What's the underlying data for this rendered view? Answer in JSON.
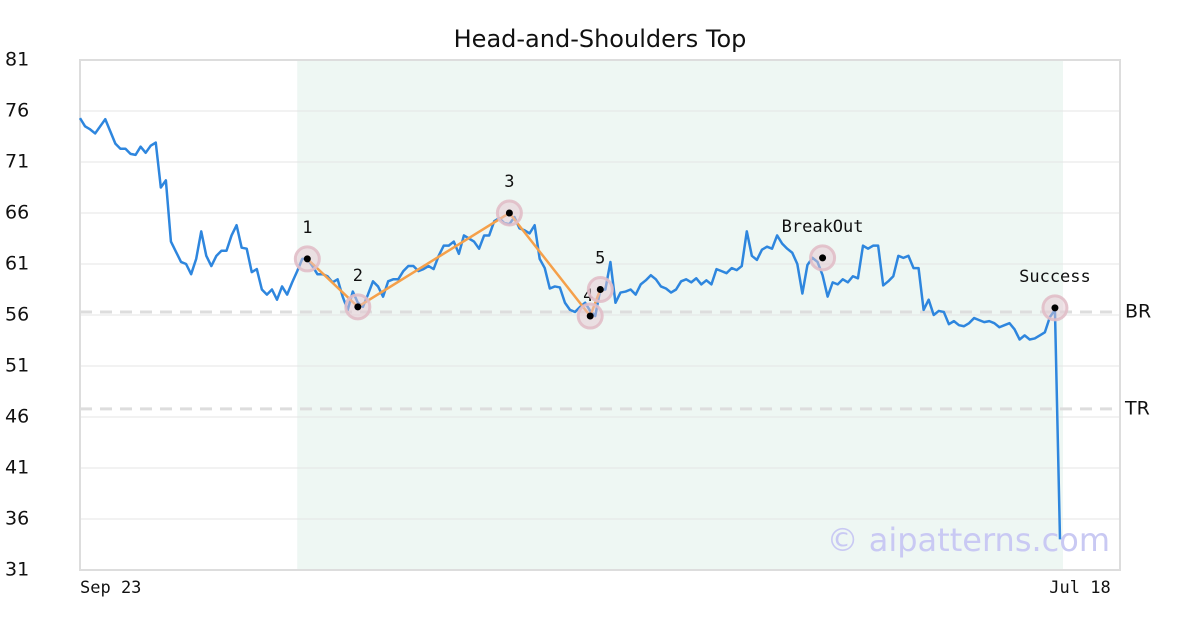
{
  "chart_data": {
    "type": "line",
    "title": "Head-and-Shoulders Top",
    "categories": [
      "Sep 23",
      null,
      null,
      null,
      null,
      null,
      null,
      null,
      null,
      null,
      null,
      null,
      null,
      null,
      null,
      null,
      null,
      null,
      null,
      null,
      null,
      null,
      null,
      null,
      null,
      null,
      null,
      null,
      null,
      null,
      null,
      null,
      null,
      null,
      null,
      null,
      null,
      null,
      null,
      null,
      null,
      null,
      null,
      null,
      null,
      null,
      null,
      null,
      null,
      null,
      null,
      null,
      null,
      null,
      null,
      null,
      null,
      null,
      null,
      null,
      null,
      null,
      null,
      null,
      null,
      null,
      null,
      null,
      null,
      null,
      null,
      null,
      null,
      null,
      null,
      null,
      null,
      null,
      null,
      null,
      null,
      null,
      null,
      null,
      null,
      null,
      null,
      null,
      null,
      null,
      null,
      null,
      null,
      null,
      null,
      null,
      null,
      null,
      null,
      null,
      null,
      null,
      null,
      null,
      null,
      null,
      null,
      null,
      null,
      null,
      null,
      null,
      null,
      null,
      null,
      null,
      null,
      null,
      null,
      null,
      null,
      null,
      null,
      null,
      null,
      null,
      null,
      null,
      null,
      null,
      null,
      null,
      null,
      null,
      null,
      null,
      null,
      null,
      null,
      null,
      null,
      null,
      null,
      null,
      null,
      null,
      null,
      null,
      null,
      null,
      null,
      null,
      null,
      null,
      null,
      null,
      null,
      null,
      null,
      null,
      null,
      null,
      null,
      null,
      null,
      null,
      null,
      null,
      null,
      null,
      null,
      null,
      null,
      null,
      null,
      null,
      null,
      null,
      null,
      null,
      null,
      null,
      null,
      null,
      null,
      null,
      null,
      null,
      null,
      null,
      null,
      null,
      null,
      null,
      "Jul 18"
    ],
    "series": [
      {
        "color": "#2e86de",
        "values": [
          75.3,
          74.5,
          74.2,
          73.8,
          74.5,
          75.2,
          74,
          72.8,
          72.3,
          72.3,
          71.8,
          71.7,
          72.5,
          71.9,
          72.6,
          72.9,
          68.5,
          69.2,
          63.2,
          62.2,
          61.2,
          61,
          60,
          61.5,
          64.2,
          61.8,
          60.8,
          61.8,
          62.3,
          62.3,
          63.8,
          64.8,
          62.6,
          62.5,
          60.2,
          60.5,
          58.5,
          58,
          58.5,
          57.5,
          58.8,
          58,
          59.2,
          60.3,
          61.5,
          61.5,
          60.8,
          60,
          60,
          59.8,
          59.2,
          59.5,
          57.8,
          56.5,
          58.3,
          57.2,
          56.8,
          58,
          59.3,
          58.8,
          57.8,
          59.3,
          59.5,
          59.5,
          60.3,
          60.8,
          60.8,
          60.3,
          60.5,
          60.8,
          60.5,
          61.8,
          62.8,
          62.8,
          63.2,
          62,
          63.8,
          63.5,
          63.2,
          62.5,
          63.8,
          63.8,
          65.2,
          65.5,
          65,
          64.9,
          65.6,
          64.5,
          64.3,
          64,
          64.8,
          61.5,
          60.6,
          58.6,
          58.8,
          58.7,
          57.2,
          56.5,
          56.3,
          56.8,
          57.2,
          56.4,
          55.9,
          58.5,
          58.5,
          61.2,
          57.2,
          58.2,
          58.3,
          58.5,
          58,
          59,
          59.4,
          59.9,
          59.5,
          58.8,
          58.6,
          58.2,
          58.5,
          59.3,
          59.5,
          59.2,
          59.6,
          59,
          59.4,
          59,
          60.5,
          60.3,
          60.1,
          60.6,
          60.4,
          60.8,
          64.2,
          61.8,
          61.4,
          62.4,
          62.7,
          62.5,
          63.8,
          63,
          62.5,
          62.1,
          61,
          58.1,
          60.9,
          61.6,
          61.2,
          59.9,
          57.8,
          59.2,
          59,
          59.5,
          59.2,
          59.8,
          59.6,
          62.8,
          62.5,
          62.8,
          62.8,
          58.9,
          59.3,
          59.8,
          61.8,
          61.6,
          61.8,
          60.6,
          60.6,
          56.5,
          57.5,
          56,
          56.4,
          56.3,
          55.1,
          55.4,
          55,
          54.9,
          55.2,
          55.7,
          55.5,
          55.3,
          55.4,
          55.2,
          54.8,
          55,
          55.2,
          54.6,
          53.6,
          54,
          53.6,
          53.7,
          54,
          54.3,
          55.8,
          56.5,
          34
        ]
      }
    ],
    "ylim": [
      31,
      81
    ],
    "yticks": [
      31,
      36,
      41,
      46,
      51,
      56,
      61,
      66,
      71,
      76,
      81
    ],
    "grid": true,
    "shaded_range": [
      43,
      194
    ],
    "annotations": [
      {
        "label": "1",
        "x": 45,
        "y": 61.5
      },
      {
        "label": "2",
        "x": 55,
        "y": 56.8
      },
      {
        "label": "3",
        "x": 85,
        "y": 66.0
      },
      {
        "label": "4",
        "x": 101,
        "y": 55.9
      },
      {
        "label": "5",
        "x": 103,
        "y": 58.5
      },
      {
        "label": "BreakOut",
        "x": 147,
        "y": 61.6
      },
      {
        "label": "Success",
        "x": 193,
        "y": 56.7
      }
    ],
    "pattern_color": "#f5a04a",
    "levels": [
      {
        "label": "BR",
        "value": 56.3
      },
      {
        "label": "TR",
        "value": 46.8
      }
    ],
    "watermark": "© aipatterns.com"
  }
}
